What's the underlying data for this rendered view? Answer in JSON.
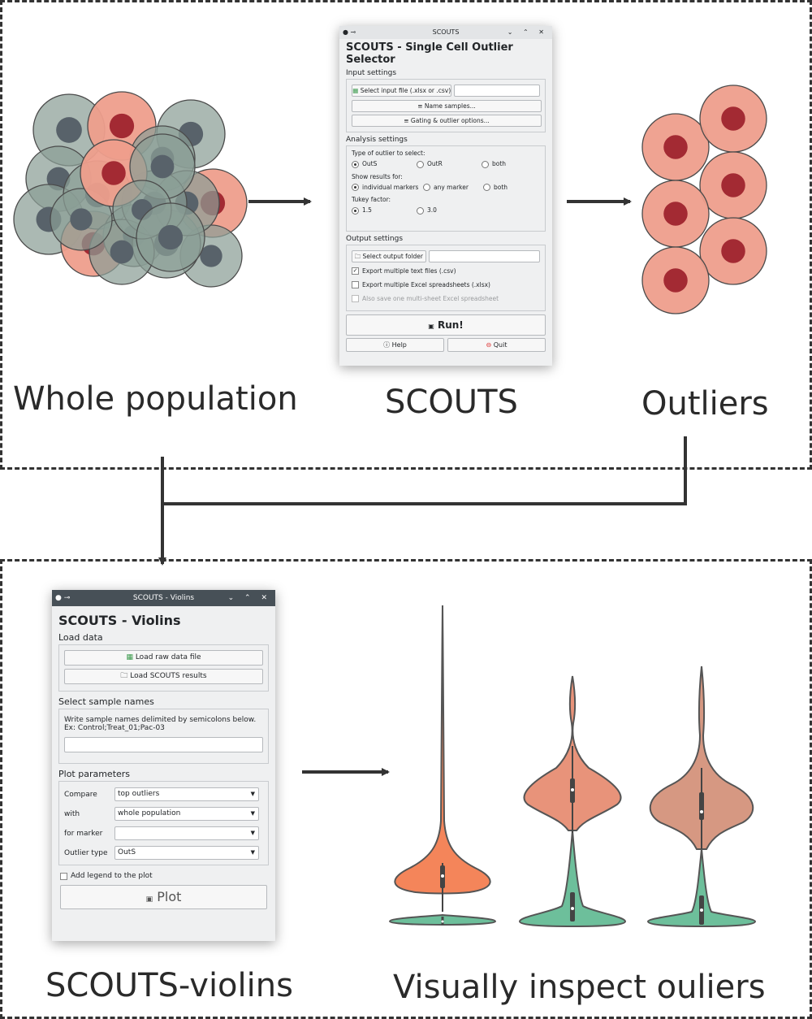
{
  "captions": {
    "whole_population": "Whole population",
    "scouts": "SCOUTS",
    "outliers": "Outliers",
    "scouts_violins": "SCOUTS-violins",
    "inspect": "Visually inspect ouliers"
  },
  "scouts_window": {
    "window_title": "SCOUTS",
    "title": "SCOUTS - Single Cell Outlier Selector",
    "input_settings": "Input settings",
    "select_input_btn": "Select input file (.xlsx or .csv)",
    "name_samples_btn": "Name samples...",
    "gating_btn": "Gating & outlier options...",
    "analysis_settings": "Analysis settings",
    "type_label": "Type of outlier to select:",
    "type_options": [
      "OutS",
      "OutR",
      "both"
    ],
    "show_label": "Show results for:",
    "show_options": [
      "individual markers",
      "any marker",
      "both"
    ],
    "tukey_label": "Tukey factor:",
    "tukey_options": [
      "1.5",
      "3.0"
    ],
    "output_settings": "Output settings",
    "select_output_btn": "Select output folder",
    "export_csv": "Export multiple text files (.csv)",
    "export_xlsx": "Export multiple Excel spreadsheets (.xlsx)",
    "also_save": "Also save one multi-sheet Excel spreadsheet",
    "run_btn": "Run!",
    "help_btn": "Help",
    "quit_btn": "Quit"
  },
  "violins_window": {
    "window_title": "SCOUTS - Violins",
    "title": "SCOUTS - Violins",
    "load_data": "Load data",
    "load_raw_btn": "Load raw data file",
    "load_results_btn": "Load SCOUTS results",
    "select_names": "Select sample names",
    "names_hint_1": "Write sample names delimited by semicolons below.",
    "names_hint_2": "Ex: Control;Treat_01;Pac-03",
    "plot_params": "Plot parameters",
    "compare_label": "Compare",
    "compare_value": "top outliers",
    "with_label": "with",
    "with_value": "whole population",
    "marker_label": "for marker",
    "marker_value": "",
    "outlier_type_label": "Outlier type",
    "outlier_type_value": "OutS",
    "legend_label": "Add legend to the plot",
    "plot_btn": "Plot"
  },
  "colors": {
    "gray_cell": "#8a9e95",
    "gray_nucleus": "#58626a",
    "pink_cell": "#ee9e8c",
    "red_nucleus": "#a32a33",
    "violin_orange": "#f4855a",
    "violin_salmon": "#e8937a",
    "violin_tan": "#d69882",
    "violin_green": "#6dbf9b"
  }
}
